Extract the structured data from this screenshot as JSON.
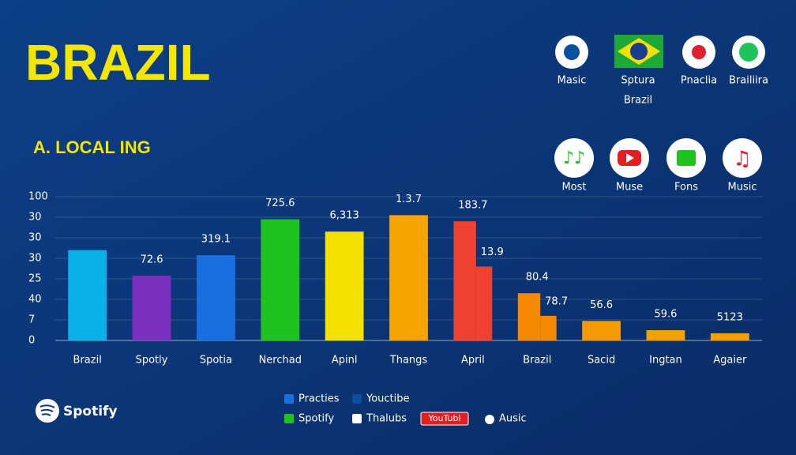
{
  "header": {
    "title": "BRAZIL",
    "subtitle": "A. LOCAL ING"
  },
  "apps_top": [
    {
      "label": "Masic"
    },
    {
      "label": "Sptura",
      "sublabel": "Brazil"
    },
    {
      "label": "Pnaclia"
    },
    {
      "label": "Brailiira"
    }
  ],
  "apps_bottom": [
    {
      "label": "Most"
    },
    {
      "label": "Muse"
    },
    {
      "label": "Fons"
    },
    {
      "label": "Music"
    }
  ],
  "chart_data": {
    "type": "bar",
    "categories": [
      "Brazil",
      "Spotly",
      "Spotia",
      "Nerchad",
      "Apinl",
      "Thangs",
      "April",
      "Brazil",
      "Sacid",
      "Ingtan",
      "Agaier"
    ],
    "values": [
      4.4,
      3.15,
      4.15,
      5.9,
      5.3,
      6.1,
      5.8,
      2.3,
      0.95,
      0.5,
      0.35
    ],
    "step_values": [
      null,
      null,
      null,
      null,
      null,
      null,
      3.6,
      1.2,
      null,
      null,
      null
    ],
    "bar_labels": [
      null,
      "72.6",
      "319.1",
      "725.6",
      "6,313",
      "1.3.7",
      "183.7",
      "80.4",
      "56.6",
      "59.6",
      "5123"
    ],
    "step_labels": [
      null,
      null,
      null,
      null,
      null,
      null,
      "13.9",
      "78.7",
      null,
      null,
      null
    ],
    "colors": [
      "#0ab0e8",
      "#7b2fbf",
      "#1a6fe0",
      "#1ec41e",
      "#f5e000",
      "#f7a300",
      "#f04030",
      "#f58a00",
      "#f59a00",
      "#f5a000",
      "#f5a000"
    ],
    "ylim": [
      0,
      7
    ],
    "yticks": [
      {
        "value": 0,
        "label": "0"
      },
      {
        "value": 1,
        "label": "7"
      },
      {
        "value": 2,
        "label": "40"
      },
      {
        "value": 3,
        "label": "25"
      },
      {
        "value": 4,
        "label": "30"
      },
      {
        "value": 5,
        "label": "30"
      },
      {
        "value": 6,
        "label": "30"
      },
      {
        "value": 7,
        "label": "100"
      }
    ],
    "grid": true
  },
  "legend": [
    {
      "label": "Practies",
      "color": "#1a6fe0"
    },
    {
      "label": "Youctibe",
      "color": "#0b4fa0"
    },
    {
      "label": "Spotify",
      "color": "#1ec41e"
    },
    {
      "label": "Thalubs",
      "color": "#ffffff"
    },
    {
      "label": "YouTubl",
      "color": "#e02020"
    },
    {
      "label": "Ausic",
      "color": "#ffffff"
    }
  ],
  "footer": {
    "logo": "Spotify"
  }
}
